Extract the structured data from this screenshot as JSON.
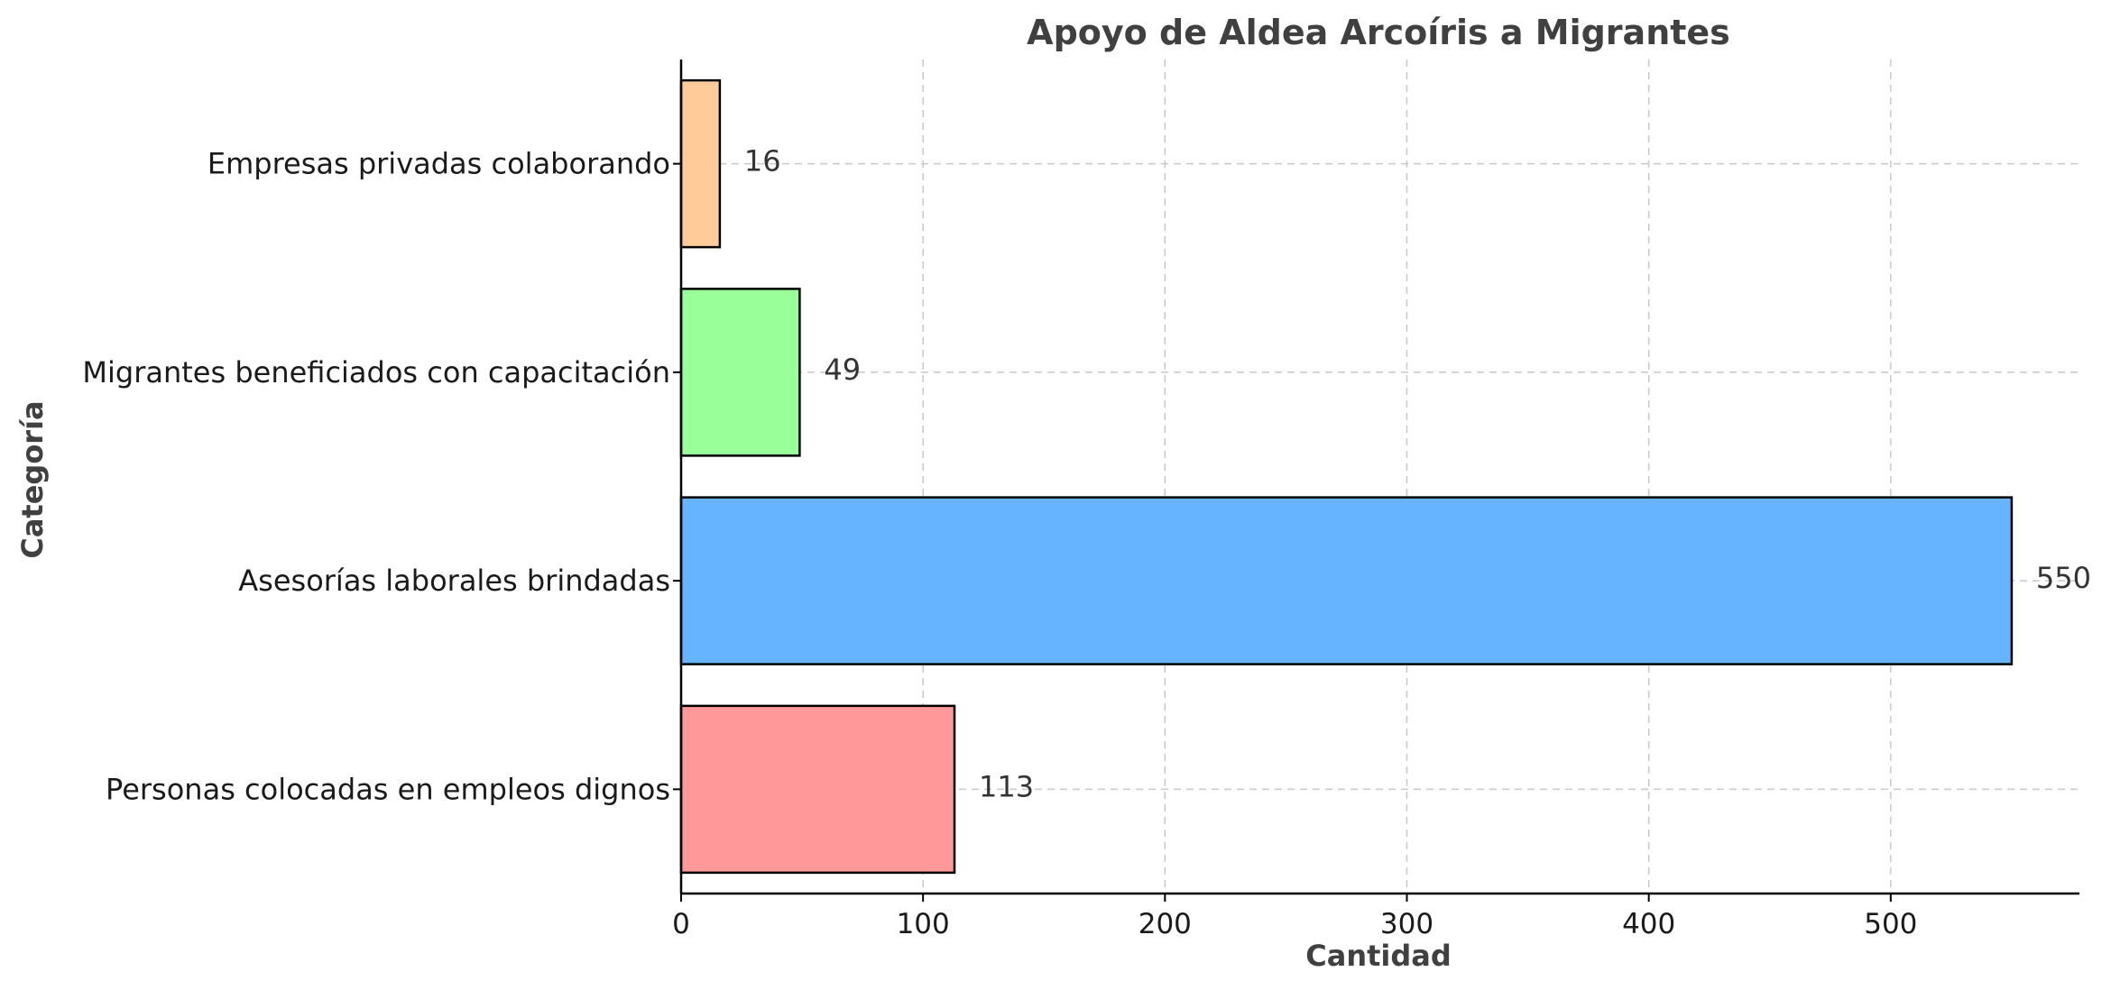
{
  "chart_data": {
    "type": "bar",
    "orientation": "horizontal",
    "title": "Apoyo de Aldea Arcoíris a Migrantes",
    "xlabel": "Cantidad",
    "ylabel": "Categoría",
    "categories": [
      "Personas colocadas en empleos dignos",
      "Asesorías laborales brindadas",
      "Migrantes beneficiados con capacitación",
      "Empresas privadas colaborando"
    ],
    "values": [
      113,
      550,
      49,
      16
    ],
    "colors": [
      "#ff9999",
      "#66b3ff",
      "#99ff99",
      "#ffcc99"
    ],
    "xlim": [
      0,
      578
    ],
    "xticks": [
      0,
      100,
      200,
      300,
      400,
      500
    ],
    "grid": true,
    "data_labels": true
  }
}
